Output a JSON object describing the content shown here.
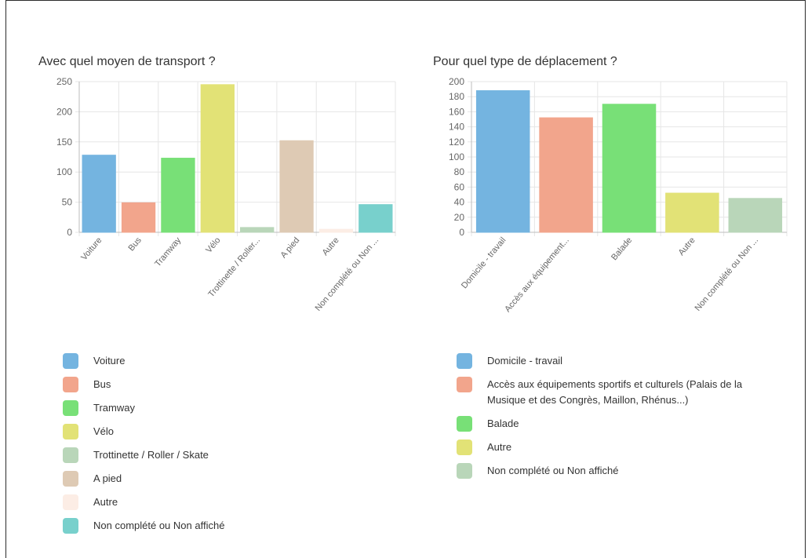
{
  "charts": [
    {
      "title": "Avec quel moyen de transport ?",
      "legend_labels": [
        "Voiture",
        "Bus",
        "Tramway",
        "Vélo",
        "Trottinette / Roller / Skate",
        "A pied",
        "Autre",
        "Non complété ou Non affiché"
      ]
    },
    {
      "title": "Pour quel type de déplacement ?",
      "legend_labels": [
        "Domicile - travail",
        "Accès aux équipements sportifs et culturels (Palais de la Musique et des Congrès, Maillon, Rhénus...)",
        "Balade",
        "Autre",
        "Non complété ou Non affiché"
      ]
    }
  ],
  "chart_data": [
    {
      "type": "bar",
      "title": "Avec quel moyen de transport ?",
      "categories": [
        "Voiture",
        "Bus",
        "Tramway",
        "Vélo",
        "Trottinette / Roller...",
        "A pied",
        "Autre",
        "Non complété ou Non ..."
      ],
      "values": [
        128,
        49,
        123,
        245,
        8,
        152,
        5,
        46
      ],
      "colors": [
        "#74b4e0",
        "#f2a58c",
        "#78e077",
        "#e2e276",
        "#b9d6b9",
        "#decab4",
        "#fcede5",
        "#78d0cc"
      ],
      "ylim": [
        0,
        250
      ],
      "yticks": [
        0,
        50,
        100,
        150,
        200,
        250
      ],
      "grid": true
    },
    {
      "type": "bar",
      "title": "Pour quel type de déplacement ?",
      "categories": [
        "Domicile - travail",
        "Accès aux équipement...",
        "Balade",
        "Autre",
        "Non complété ou Non ..."
      ],
      "values": [
        188,
        152,
        170,
        52,
        45
      ],
      "colors": [
        "#74b4e0",
        "#f2a58c",
        "#78e077",
        "#e2e276",
        "#b9d6b9"
      ],
      "ylim": [
        0,
        200
      ],
      "yticks": [
        0,
        20,
        40,
        60,
        80,
        100,
        120,
        140,
        160,
        180,
        200
      ],
      "grid": true
    }
  ]
}
